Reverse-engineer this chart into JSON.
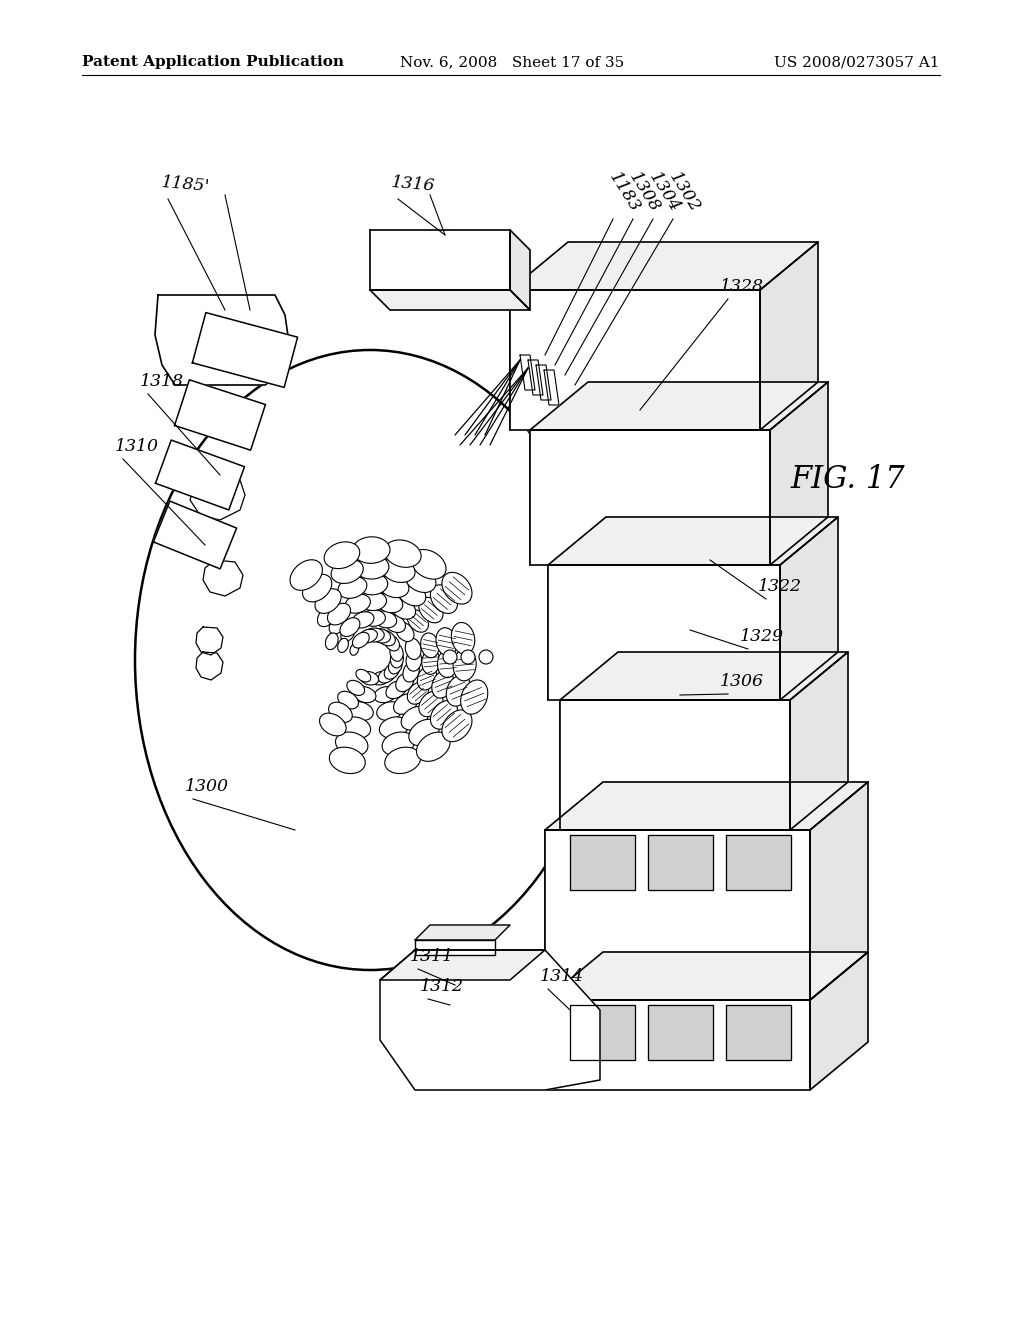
{
  "bg_color": "#ffffff",
  "header_left": "Patent Application Publication",
  "header_mid": "Nov. 6, 2008   Sheet 17 of 35",
  "header_right": "US 2008/0273057 A1",
  "fig_label": "FIG. 17",
  "header_fontsize": 11,
  "label_fontsize": 12.5
}
